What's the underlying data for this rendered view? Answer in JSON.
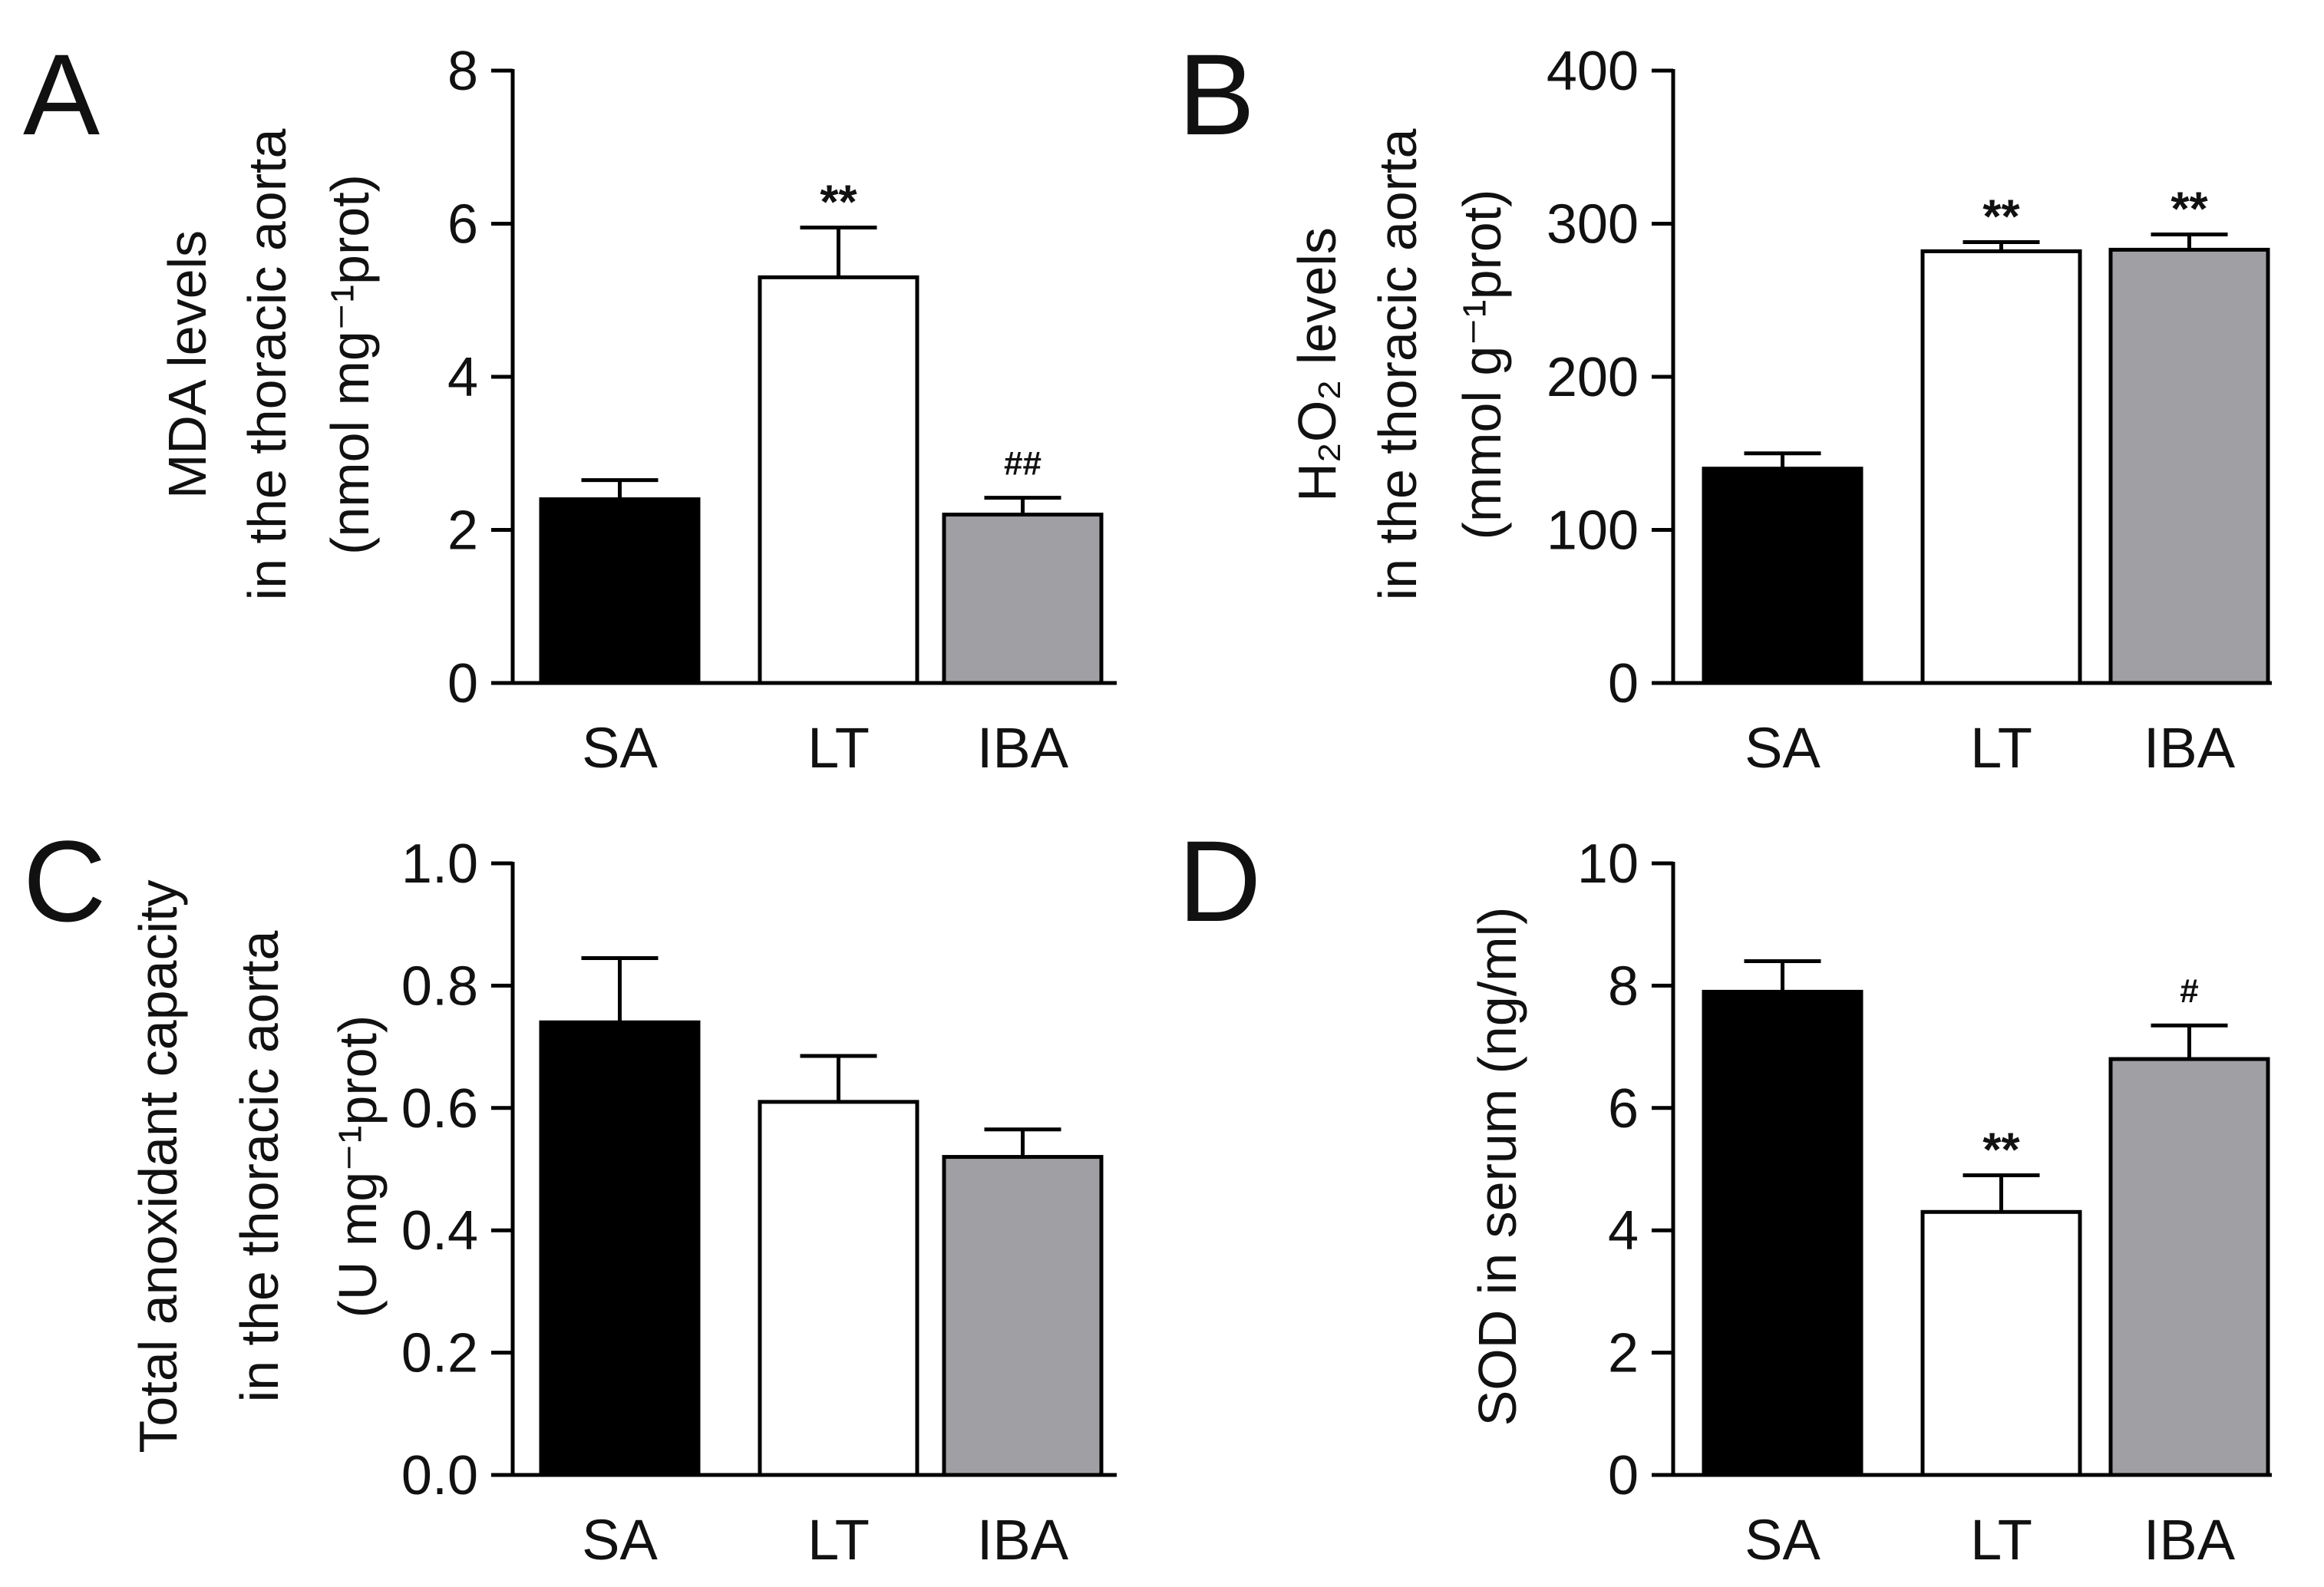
{
  "chart_data": [
    {
      "panel": "A",
      "type": "bar",
      "categories": [
        "SA",
        "LT",
        "IBA"
      ],
      "values": [
        2.4,
        5.3,
        2.2
      ],
      "errors": [
        0.25,
        0.65,
        0.22
      ],
      "annotations": [
        "",
        "**",
        "##"
      ],
      "ylim": [
        0,
        8
      ],
      "yticks": [
        "0",
        "2",
        "4",
        "6",
        "8"
      ],
      "ylabel_lines": [
        "MDA levels",
        "in the thoracic aorta",
        "(nmol mg⁻¹prot)"
      ],
      "xlabel": ""
    },
    {
      "panel": "B",
      "type": "bar",
      "categories": [
        "SA",
        "LT",
        "IBA"
      ],
      "values": [
        140,
        282,
        283
      ],
      "errors": [
        10,
        6,
        10
      ],
      "annotations": [
        "",
        "**",
        "**"
      ],
      "ylim": [
        0,
        400
      ],
      "yticks": [
        "0",
        "100",
        "200",
        "300",
        "400"
      ],
      "ylabel_lines": [
        "H₂O₂ levels",
        "in the thoracic aorta",
        "(mmol g⁻¹prot)"
      ],
      "xlabel": ""
    },
    {
      "panel": "C",
      "type": "bar",
      "categories": [
        "SA",
        "LT",
        "IBA"
      ],
      "values": [
        0.74,
        0.61,
        0.52
      ],
      "errors": [
        0.105,
        0.075,
        0.045
      ],
      "annotations": [
        "",
        "",
        ""
      ],
      "ylim": [
        0,
        1.0
      ],
      "yticks": [
        "0.0",
        "0.2",
        "0.4",
        "0.6",
        "0.8",
        "1.0"
      ],
      "ylabel_lines": [
        "Total anoxidant capacity",
        "in the thoracic aorta",
        "(U mg⁻¹prot)"
      ],
      "xlabel": ""
    },
    {
      "panel": "D",
      "type": "bar",
      "categories": [
        "SA",
        "LT",
        "IBA"
      ],
      "values": [
        7.9,
        4.3,
        6.8
      ],
      "errors": [
        0.5,
        0.6,
        0.55
      ],
      "annotations": [
        "",
        "**",
        "#"
      ],
      "ylim": [
        0,
        10
      ],
      "yticks": [
        "0",
        "2",
        "4",
        "6",
        "8",
        "10"
      ],
      "ylabel_lines": [
        "SOD in serum (ng/ml)"
      ],
      "xlabel": ""
    }
  ],
  "colors": {
    "SA": "#000000",
    "LT": "#ffffff",
    "IBA": "#a0a0a4",
    "stroke": "#000000"
  }
}
